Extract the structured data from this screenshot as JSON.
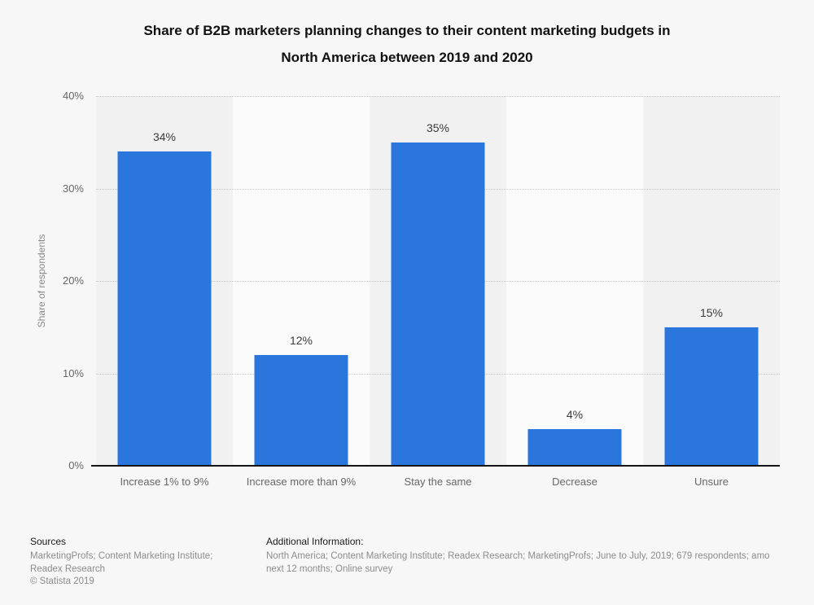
{
  "title": {
    "line1": "Share of B2B marketers planning changes to their content marketing budgets in",
    "line2": "North America between 2019 and 2020"
  },
  "chart_data": {
    "type": "bar",
    "title": "Share of B2B marketers planning changes to their content marketing budgets in North America between 2019 and 2020",
    "categories": [
      "Increase 1% to 9%",
      "Increase more than 9%",
      "Stay the same",
      "Decrease",
      "Unsure"
    ],
    "values": [
      34,
      12,
      35,
      4,
      15
    ],
    "value_labels": [
      "34%",
      "12%",
      "35%",
      "4%",
      "15%"
    ],
    "xlabel": "",
    "ylabel": "Share of respondents",
    "ylim": [
      0,
      40
    ],
    "yticks": [
      "0%",
      "10%",
      "20%",
      "30%",
      "40%"
    ],
    "grid": "horizontal-dotted",
    "legend": "none"
  },
  "footer": {
    "sources_heading": "Sources",
    "sources_line1": "MarketingProfs; Content Marketing Institute;",
    "sources_line2": "Readex Research",
    "copyright": "© Statista 2019",
    "additional_heading": "Additional Information:",
    "additional_line1": "North America; Content Marketing Institute; Readex Research; MarketingProfs; June to July, 2019; 679 respondents; amo",
    "additional_line2": "next 12 months; Online survey"
  },
  "colors": {
    "bar_blue": "#2a76dd",
    "page_background": "#f7f7f7",
    "stripe_dark": "#f1f1f1",
    "stripe_light": "#fbfbfb",
    "axis_line": "#151515",
    "gridline": "#c9c9c9",
    "value_label_text": "#3a3a3a",
    "axis_label_text": "#666666",
    "footer_gray_text": "#8c8c8c"
  }
}
